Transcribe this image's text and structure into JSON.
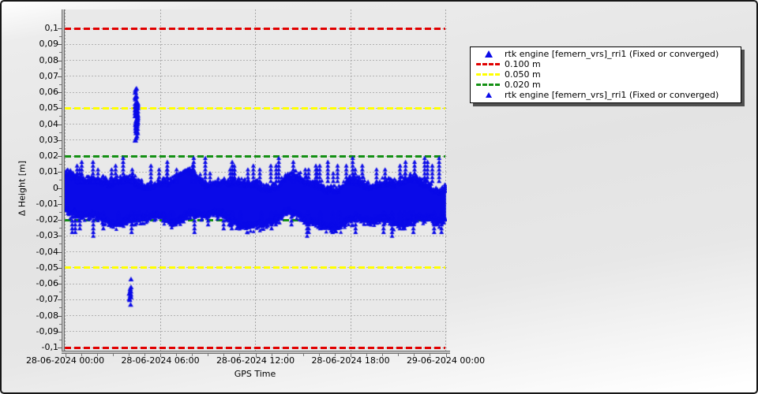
{
  "window": {
    "background_accent": "#e3e3e3",
    "plot_background": "#e9e9e9",
    "border_color": "#161616"
  },
  "chart_data": {
    "type": "scatter",
    "title": "",
    "xlabel": "GPS Time",
    "ylabel": "Δ Height [m]",
    "grid": true,
    "x_axis": {
      "range_hours": [
        0,
        24
      ],
      "tick_hours": [
        0,
        6,
        12,
        18,
        24
      ],
      "tick_labels": [
        "28-06-2024 00:00",
        "28-06-2024 06:00",
        "28-06-2024 12:00",
        "28-06-2024 18:00",
        "29-06-2024 00:00"
      ],
      "minor_tick_every_hours": 1
    },
    "y_axis": {
      "unit": "m",
      "ylim": [
        -0.1,
        0.1
      ],
      "tick_step": 0.01,
      "minor_tick_step": 0.005,
      "decimal_separator": ",",
      "tick_values": [
        0.1,
        0.09,
        0.08,
        0.07,
        0.06,
        0.05,
        0.04,
        0.03,
        0.02,
        0.01,
        0,
        -0.01,
        -0.02,
        -0.03,
        -0.04,
        -0.05,
        -0.06,
        -0.07,
        -0.08,
        -0.09,
        -0.1
      ],
      "tick_labels": [
        "0,1",
        "0,09",
        "0,08",
        "0,07",
        "0,06",
        "0,05",
        "0,04",
        "0,03",
        "0,02",
        "0,01",
        "0",
        "-0,01",
        "-0,02",
        "-0,03",
        "-0,04",
        "-0,05",
        "-0,06",
        "-0,07",
        "-0,08",
        "-0,09",
        "-0,1"
      ]
    },
    "reference_lines": [
      {
        "label": "0.100 m",
        "values": [
          0.1,
          -0.1
        ],
        "color": "#e10000",
        "style": "dashed"
      },
      {
        "label": "0.050 m",
        "values": [
          0.05,
          -0.05
        ],
        "color": "#ffff00",
        "style": "dashed"
      },
      {
        "label": "0.020 m",
        "values": [
          0.02,
          -0.02
        ],
        "color": "#149014",
        "style": "dashed"
      }
    ],
    "series": [
      {
        "name": "rtk engine [femern_vrs]_rri1 (Fixed or converged)",
        "marker": "triangle-up",
        "color": "#0a0ae8",
        "band": {
          "x_hours": [
            0,
            24
          ],
          "mean_m": -0.0065,
          "solid_top_m": 0.004,
          "solid_bottom_m": -0.018,
          "spike_max_m": 0.02,
          "spike_min_m": -0.031,
          "up_spikes": 52,
          "down_spikes": 42
        },
        "outlier_clusters": [
          {
            "x_hour": 4.5,
            "y_mean_m": 0.0455,
            "y_sd_m": 0.0075,
            "y_min_m": 0.0295,
            "y_max_m": 0.062,
            "points": 78
          },
          {
            "x_hour": 4.1,
            "y_values_m": [
              -0.0575,
              -0.0625,
              -0.0635,
              -0.0645,
              -0.0652,
              -0.066,
              -0.0665,
              -0.067,
              -0.0678,
              -0.0688,
              -0.0698,
              -0.0705,
              -0.0735
            ]
          }
        ]
      }
    ],
    "legend": {
      "position": "top-right",
      "entries": [
        {
          "marker": "triangle",
          "size": "large",
          "color": "#0a0ae8",
          "label": "rtk engine [femern_vrs]_rri1 (Fixed or converged)"
        },
        {
          "marker": "dash",
          "color": "#e10000",
          "label": "0.100 m"
        },
        {
          "marker": "dash",
          "color": "#ffff00",
          "label": "0.050 m"
        },
        {
          "marker": "dash",
          "color": "#149014",
          "label": "0.020 m"
        },
        {
          "marker": "triangle",
          "size": "small",
          "color": "#0a0ae8",
          "label": "rtk engine [femern_vrs]_rri1 (Fixed or converged)"
        }
      ]
    },
    "seed": 20240628
  }
}
